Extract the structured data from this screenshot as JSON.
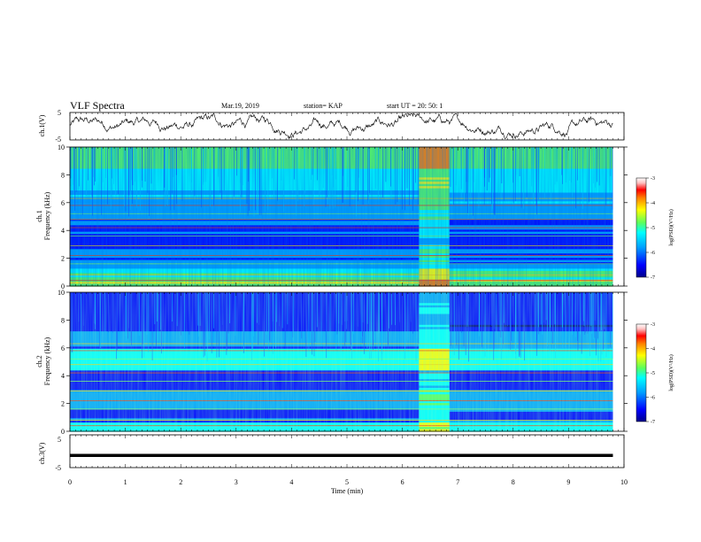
{
  "header": {
    "title": "VLF Spectra",
    "date": "Mar.19, 2019",
    "station": "station= KAP",
    "start": "start UT =  20: 50: 1"
  },
  "chart_data": [
    {
      "type": "line",
      "panel": "ch1-waveform",
      "ylabel": "ch.1(V)",
      "ylim": [
        -5,
        5
      ],
      "yticks": [
        "5",
        "-5"
      ],
      "xlim": [
        0,
        10
      ],
      "trace_color": "#000000",
      "description_values": {
        "mean": 0.5,
        "min": -4.5,
        "max": 4.5
      }
    },
    {
      "type": "heatmap",
      "panel": "ch1-spectrogram",
      "ylabel": "ch.1",
      "ylabel2": "Frequency (kHz)",
      "ylim": [
        0,
        10
      ],
      "yticks": [
        "0",
        "2",
        "4",
        "6",
        "8",
        "10"
      ],
      "xlim": [
        0,
        10
      ],
      "data_end_min": 9.8,
      "disturbance_min": [
        6.3,
        6.85
      ],
      "colorbar": {
        "label": "log(PSD)(V²/Hz)",
        "range": [
          -7,
          -3
        ],
        "ticks": [
          "-3",
          "-4",
          "-5",
          "-6",
          "-7"
        ]
      }
    },
    {
      "type": "heatmap",
      "panel": "ch2-spectrogram",
      "ylabel": "ch.2",
      "ylabel2": "Frequency (kHz)",
      "ylim": [
        0,
        10
      ],
      "yticks": [
        "0",
        "2",
        "4",
        "6",
        "8",
        "10"
      ],
      "xlim": [
        0,
        10
      ],
      "data_end_min": 9.8,
      "disturbance_min": [
        6.3,
        6.85
      ],
      "colorbar": {
        "label": "log(PSD)(V²/Hz)",
        "range": [
          -7,
          -3
        ],
        "ticks": [
          "-3",
          "-4",
          "-5",
          "-6",
          "-7"
        ]
      }
    },
    {
      "type": "line",
      "panel": "ch3-waveform",
      "ylabel": "ch.3(V)",
      "ylim": [
        -5,
        5
      ],
      "yticks": [
        "5",
        "-5"
      ],
      "xlim": [
        0,
        10
      ],
      "values_constant": -1.3,
      "trace_color": "#000000"
    }
  ],
  "xaxis": {
    "label": "Time (min)",
    "ticks": [
      "0",
      "1",
      "2",
      "3",
      "4",
      "5",
      "6",
      "7",
      "8",
      "9",
      "10"
    ]
  },
  "colors": {
    "colormap": [
      "#00008a",
      "#0000ff",
      "#00a0ff",
      "#00ffff",
      "#5cff5c",
      "#ffff00",
      "#ff8000",
      "#ff0000",
      "#ffc0c0",
      "#ffffff"
    ]
  }
}
